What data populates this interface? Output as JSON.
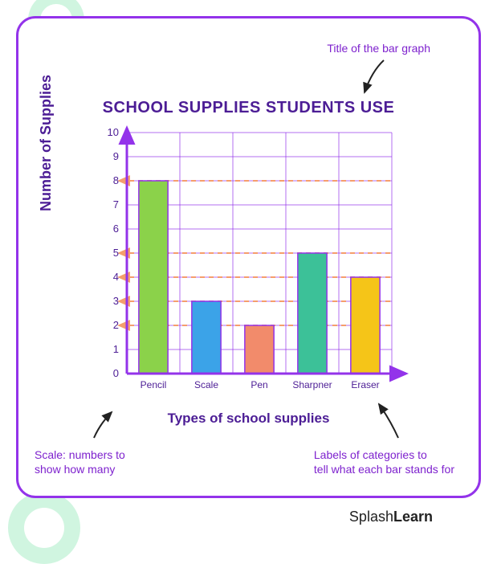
{
  "annotations": {
    "title_note": "Title of the bar graph",
    "scale_note": "Scale: numbers to\nshow how many",
    "labels_note": "Labels of categories to\ntell what each bar stands for"
  },
  "chart": {
    "type": "bar",
    "title": "SCHOOL SUPPLIES STUDENTS USE",
    "ylabel": "Number of Supplies",
    "xlabel": "Types of school supplies",
    "categories": [
      "Pencil",
      "Scale",
      "Pen",
      "Sharpner",
      "Eraser"
    ],
    "values": [
      8,
      3,
      2,
      5,
      4
    ],
    "bar_colors": [
      "#8bd24a",
      "#3ba3e8",
      "#f28b6b",
      "#3cc198",
      "#f5c518"
    ],
    "bar_border": "#9333ea",
    "ylim": [
      0,
      10
    ],
    "ytick_step": 1,
    "grid_color": "#9333ea",
    "axis_color": "#9333ea",
    "dashed_line_color": "#f59e6c",
    "dashed_arrow_values": [
      8,
      5,
      4,
      3,
      2
    ],
    "background_color": "#ffffff",
    "title_fontsize": 20,
    "label_fontsize": 17,
    "tick_fontsize": 13,
    "category_fontsize": 12,
    "bar_width_ratio": 0.55
  },
  "logo": {
    "part1": "Splash",
    "part2": "Learn"
  }
}
